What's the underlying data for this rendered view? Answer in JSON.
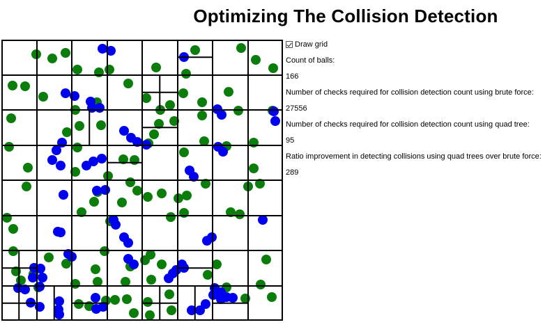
{
  "title": "Optimizing The Collision Detection",
  "controls": {
    "draw_grid_label": "Draw grid",
    "draw_grid_checked": true
  },
  "stats": {
    "count_label": "Count of balls:",
    "count_value": "166",
    "brute_label": "Number of checks required for collision detection count using brute force:",
    "brute_value": "27556",
    "quad_label": "Number of checks required for collision detection count using quad tree:",
    "quad_value": "95",
    "ratio_label": "Ratio improvement in detecting collisions using quad trees over brute force:",
    "ratio_value": "289"
  },
  "colors": {
    "green_ball": "#0a7d0a",
    "blue_ball": "#0000f0",
    "grid_line": "#000000"
  }
}
